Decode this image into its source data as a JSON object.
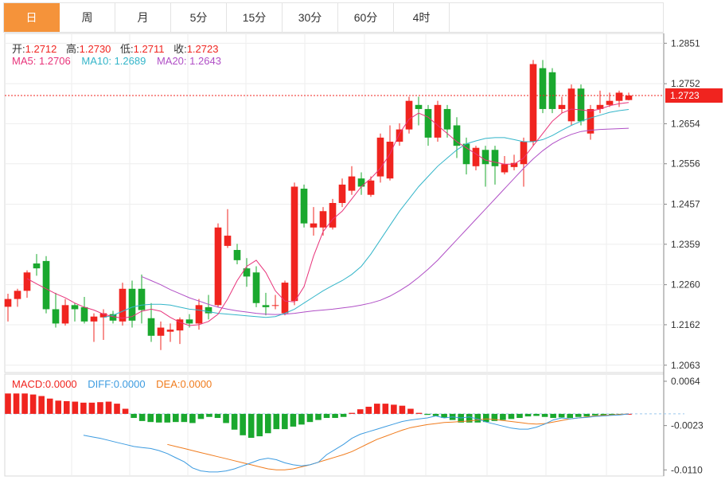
{
  "tabs": [
    {
      "label": "日",
      "active": true
    },
    {
      "label": "周",
      "active": false
    },
    {
      "label": "月",
      "active": false
    },
    {
      "label": "5分",
      "active": false
    },
    {
      "label": "15分",
      "active": false
    },
    {
      "label": "30分",
      "active": false
    },
    {
      "label": "60分",
      "active": false
    },
    {
      "label": "4时",
      "active": false
    }
  ],
  "ohlc_info": {
    "open_label": "开:",
    "open": "1.2712",
    "high_label": "高:",
    "high": "1.2730",
    "low_label": "低:",
    "low": "1.2711",
    "close_label": "收:",
    "close": "1.2723"
  },
  "ma_info": {
    "ma5_label": "MA5:",
    "ma5": "1.2706",
    "ma10_label": "MA10:",
    "ma10": "1.2689",
    "ma20_label": "MA20:",
    "ma20": "1.2643"
  },
  "macd_info": {
    "macd_label": "MACD:",
    "macd": "0.0000",
    "diff_label": "DIFF:",
    "diff": "0.0000",
    "dea_label": "DEA:",
    "dea": "0.0000"
  },
  "colors": {
    "up": "#f0241f",
    "down": "#1aa82e",
    "ma5": "#e8337a",
    "ma10": "#33b5c9",
    "ma20": "#b04fc6",
    "diff": "#3c9be0",
    "dea": "#f07c1e",
    "label_grey": "#333333",
    "accent": "#f5933a"
  },
  "chart_data": {
    "type": "candlestick",
    "price_ticks": [
      "1.2851",
      "1.2752",
      "1.2654",
      "1.2556",
      "1.2457",
      "1.2359",
      "1.2260",
      "1.2162",
      "1.2063"
    ],
    "price_range": [
      1.2045,
      1.2875
    ],
    "current_price": "1.2723",
    "macd_ticks": [
      "0.0064",
      "-0.0023",
      "-0.0110"
    ],
    "macd_range": [
      -0.0122,
      0.0078
    ],
    "candles": [
      [
        1.2206,
        1.2225,
        1.217,
        1.2238
      ],
      [
        1.2225,
        1.2245,
        1.2206,
        1.225
      ],
      [
        1.2245,
        1.229,
        1.2228,
        1.2295
      ],
      [
        1.2312,
        1.23,
        1.2282,
        1.2335
      ],
      [
        1.2318,
        1.22,
        1.219,
        1.233
      ],
      [
        1.22,
        1.2165,
        1.2155,
        1.224
      ],
      [
        1.2165,
        1.221,
        1.216,
        1.2225
      ],
      [
        1.221,
        1.22,
        1.217,
        1.2215
      ],
      [
        1.2205,
        1.217,
        1.2165,
        1.223
      ],
      [
        1.217,
        1.2182,
        1.212,
        1.219
      ],
      [
        1.218,
        1.219,
        1.2125,
        1.22
      ],
      [
        1.2188,
        1.2172,
        1.2165,
        1.2196
      ],
      [
        1.217,
        1.225,
        1.216,
        1.2265
      ],
      [
        1.225,
        1.2172,
        1.2155,
        1.227
      ],
      [
        1.225,
        1.2198,
        1.2165,
        1.2285
      ],
      [
        1.2178,
        1.2135,
        1.212,
        1.2215
      ],
      [
        1.2135,
        1.2155,
        1.21,
        1.217
      ],
      [
        1.2145,
        1.215,
        1.212,
        1.2165
      ],
      [
        1.2148,
        1.2175,
        1.2115,
        1.218
      ],
      [
        1.2175,
        1.2165,
        1.2155,
        1.2188
      ],
      [
        1.2165,
        1.221,
        1.215,
        1.2225
      ],
      [
        1.2205,
        1.219,
        1.2175,
        1.2235
      ],
      [
        1.221,
        1.24,
        1.2205,
        1.241
      ],
      [
        1.2355,
        1.238,
        1.235,
        1.2445
      ],
      [
        1.2345,
        1.232,
        1.231,
        1.236
      ],
      [
        1.23,
        1.228,
        1.2255,
        1.2325
      ],
      [
        1.229,
        1.2215,
        1.2205,
        1.2305
      ],
      [
        1.221,
        1.2205,
        1.2185,
        1.224
      ],
      [
        1.221,
        1.221,
        1.22,
        1.2235
      ],
      [
        1.219,
        1.2265,
        1.2185,
        1.227
      ],
      [
        1.222,
        1.25,
        1.221,
        1.251
      ],
      [
        1.2495,
        1.241,
        1.24,
        1.2505
      ],
      [
        1.24,
        1.241,
        1.238,
        1.245
      ],
      [
        1.24,
        1.244,
        1.238,
        1.245
      ],
      [
        1.24,
        1.246,
        1.2395,
        1.247
      ],
      [
        1.246,
        1.2505,
        1.245,
        1.252
      ],
      [
        1.249,
        1.2525,
        1.248,
        1.255
      ],
      [
        1.252,
        1.25,
        1.248,
        1.2535
      ],
      [
        1.248,
        1.2515,
        1.2475,
        1.2525
      ],
      [
        1.2525,
        1.262,
        1.251,
        1.263
      ],
      [
        1.252,
        1.261,
        1.2515,
        1.265
      ],
      [
        1.261,
        1.264,
        1.26,
        1.2655
      ],
      [
        1.264,
        1.271,
        1.263,
        1.272
      ],
      [
        1.27,
        1.269,
        1.265,
        1.272
      ],
      [
        1.269,
        1.262,
        1.26,
        1.27
      ],
      [
        1.262,
        1.27,
        1.261,
        1.271
      ],
      [
        1.269,
        1.264,
        1.262,
        1.27
      ],
      [
        1.265,
        1.26,
        1.257,
        1.267
      ],
      [
        1.2605,
        1.2555,
        1.253,
        1.262
      ],
      [
        1.255,
        1.2595,
        1.254,
        1.26
      ],
      [
        1.259,
        1.2555,
        1.25,
        1.26
      ],
      [
        1.259,
        1.255,
        1.2505,
        1.26
      ],
      [
        1.2535,
        1.2555,
        1.253,
        1.2575
      ],
      [
        1.2548,
        1.2558,
        1.254,
        1.2578
      ],
      [
        1.2555,
        1.261,
        1.25,
        1.262
      ],
      [
        1.261,
        1.28,
        1.26,
        1.281
      ],
      [
        1.279,
        1.269,
        1.268,
        1.281
      ],
      [
        1.278,
        1.269,
        1.268,
        1.279
      ],
      [
        1.269,
        1.27,
        1.268,
        1.272
      ],
      [
        1.266,
        1.274,
        1.265,
        1.275
      ],
      [
        1.274,
        1.266,
        1.265,
        1.275
      ],
      [
        1.263,
        1.269,
        1.2615,
        1.27
      ],
      [
        1.269,
        1.27,
        1.268,
        1.2735
      ],
      [
        1.27,
        1.271,
        1.2695,
        1.273
      ],
      [
        1.271,
        1.273,
        1.2695,
        1.2735
      ],
      [
        1.2712,
        1.2723,
        1.2711,
        1.273
      ]
    ],
    "ma5": [
      1.2275,
      1.2262,
      1.225,
      1.2238,
      1.2228,
      1.2215,
      1.2205,
      1.2198,
      1.2188,
      1.2182,
      1.2178,
      1.2182,
      1.2195,
      1.22,
      1.2195,
      1.218,
      1.2168,
      1.216,
      1.2162,
      1.217,
      1.2188,
      1.2225,
      1.227,
      1.2305,
      1.232,
      1.229,
      1.2245,
      1.222,
      1.2218,
      1.2255,
      1.233,
      1.239,
      1.242,
      1.244,
      1.247,
      1.25,
      1.252,
      1.2545,
      1.258,
      1.263,
      1.2665,
      1.268,
      1.267,
      1.265,
      1.263,
      1.261,
      1.2595,
      1.258,
      1.2565,
      1.256,
      1.2555,
      1.2555,
      1.257,
      1.26,
      1.263,
      1.266,
      1.268,
      1.269,
      1.2688,
      1.2685,
      1.269,
      1.2698,
      1.2703,
      1.2706
    ],
    "ma10": [
      1.218,
      1.2185,
      1.2195,
      1.2205,
      1.221,
      1.2212,
      1.2212,
      1.221,
      1.2205,
      1.22,
      1.2198,
      1.2194,
      1.219,
      1.2188,
      1.2186,
      1.2184,
      1.2182,
      1.218,
      1.2182,
      1.219,
      1.22,
      1.2215,
      1.223,
      1.2245,
      1.2258,
      1.227,
      1.2285,
      1.2305,
      1.2335,
      1.237,
      1.2405,
      1.244,
      1.247,
      1.25,
      1.2525,
      1.255,
      1.257,
      1.259,
      1.2605,
      1.2612,
      1.2618,
      1.262,
      1.262,
      1.2615,
      1.261,
      1.261,
      1.2615,
      1.2625,
      1.2638,
      1.265,
      1.266,
      1.2668,
      1.2675,
      1.2682,
      1.2686,
      1.2689
    ],
    "ma20": [
      1.228,
      1.227,
      1.226,
      1.2248,
      1.2238,
      1.2228,
      1.222,
      1.2212,
      1.2205,
      1.22,
      1.2196,
      1.2193,
      1.219,
      1.2188,
      1.2187,
      1.2188,
      1.219,
      1.2193,
      1.2196,
      1.2198,
      1.22,
      1.2203,
      1.2206,
      1.221,
      1.2215,
      1.2222,
      1.2232,
      1.2245,
      1.226,
      1.2278,
      1.2298,
      1.232,
      1.2345,
      1.237,
      1.2395,
      1.242,
      1.2445,
      1.247,
      1.2495,
      1.252,
      1.2545,
      1.2568,
      1.2588,
      1.2605,
      1.2618,
      1.2628,
      1.2635,
      1.2638,
      1.264,
      1.2641,
      1.2642,
      1.2643
    ],
    "macd": [
      0.004,
      0.004,
      0.004,
      0.0038,
      0.0035,
      0.003,
      0.0026,
      0.0025,
      0.0024,
      0.0022,
      0.0022,
      0.0023,
      0.0024,
      0.002,
      0.001,
      -0.0008,
      -0.0014,
      -0.0016,
      -0.0017,
      -0.0017,
      -0.0016,
      -0.0016,
      -0.0018,
      -0.001,
      -0.0006,
      -0.0008,
      -0.0018,
      -0.0031,
      -0.0042,
      -0.0047,
      -0.0044,
      -0.0038,
      -0.003,
      -0.003,
      -0.0025,
      -0.0021,
      -0.0016,
      -0.0012,
      -0.0008,
      -0.0008,
      -0.0006,
      0.0002,
      0.0009,
      0.0014,
      0.002,
      0.002,
      0.0018,
      0.0016,
      0.001,
      0.0002,
      -0.0002,
      -0.0004,
      -0.0008,
      -0.0012,
      -0.0017,
      -0.0017,
      -0.0017,
      -0.0016,
      -0.0014,
      -0.0012,
      -0.001,
      -0.0008,
      -0.0005,
      -0.0004,
      -0.0006,
      -0.0008,
      -0.0007,
      -0.0008,
      -0.0006,
      -0.0005,
      -0.0003,
      -0.0003,
      -0.0002,
      -0.0001,
      0.0
    ],
    "diff": [
      -0.0042,
      -0.0045,
      -0.0048,
      -0.0052,
      -0.0056,
      -0.006,
      -0.0064,
      -0.0066,
      -0.0068,
      -0.0072,
      -0.0078,
      -0.0086,
      -0.0094,
      -0.0106,
      -0.0112,
      -0.0114,
      -0.0114,
      -0.0112,
      -0.0108,
      -0.0102,
      -0.0096,
      -0.009,
      -0.0087,
      -0.009,
      -0.0096,
      -0.01,
      -0.0102,
      -0.01,
      -0.0095,
      -0.008,
      -0.007,
      -0.006,
      -0.0048,
      -0.004,
      -0.0035,
      -0.003,
      -0.0025,
      -0.002,
      -0.0015,
      -0.0012,
      -0.001,
      -0.0008,
      -0.0004,
      -0.0008,
      -0.0006,
      -0.0008,
      -0.0006,
      -0.001,
      -0.0016,
      -0.002,
      -0.0024,
      -0.0028,
      -0.003,
      -0.003,
      -0.0026,
      -0.002,
      -0.0012,
      -0.0008,
      -0.001,
      -0.0008,
      -0.0007,
      -0.0005,
      -0.0004,
      -0.0003,
      -0.0002,
      0.0
    ],
    "dea": [
      -0.006,
      -0.0064,
      -0.0068,
      -0.0072,
      -0.0076,
      -0.008,
      -0.0084,
      -0.0088,
      -0.0092,
      -0.0096,
      -0.01,
      -0.0104,
      -0.0108,
      -0.011,
      -0.011,
      -0.0108,
      -0.0104,
      -0.01,
      -0.0095,
      -0.009,
      -0.0085,
      -0.008,
      -0.0074,
      -0.0066,
      -0.0058,
      -0.005,
      -0.0044,
      -0.0038,
      -0.0032,
      -0.0027,
      -0.0024,
      -0.0021,
      -0.0019,
      -0.0017,
      -0.0016,
      -0.0015,
      -0.0014,
      -0.0012,
      -0.001,
      -0.0011,
      -0.0013,
      -0.0015,
      -0.0017,
      -0.0019,
      -0.002,
      -0.0019,
      -0.0016,
      -0.0013,
      -0.001,
      -0.0008,
      -0.0006,
      -0.0004,
      -0.0003,
      -0.0002,
      -0.0001,
      0.0
    ]
  }
}
